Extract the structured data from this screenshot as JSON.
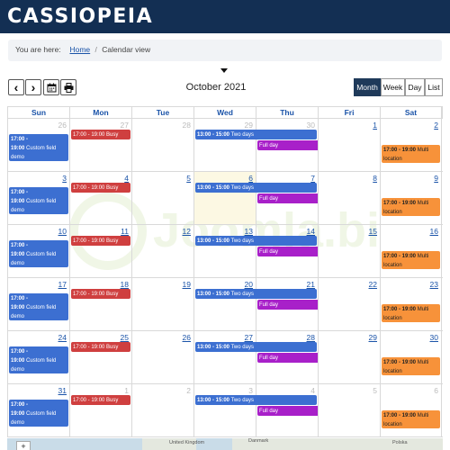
{
  "header": {
    "brand": "CASSIOPEIA"
  },
  "breadcrumb": {
    "prefix": "You are here:",
    "home": "Home",
    "separator": "/",
    "current": "Calendar view"
  },
  "toolbar": {
    "prev": "‹",
    "next": "›",
    "calendar_icon": "calendar-icon",
    "print_icon": "print-icon",
    "title": "October 2021",
    "views": [
      "Month",
      "Week",
      "Day",
      "List"
    ],
    "active_view": "Month"
  },
  "calendar": {
    "days_of_week": [
      "Sun",
      "Mon",
      "Tue",
      "Wed",
      "Thu",
      "Fri",
      "Sat"
    ],
    "weeks": [
      {
        "days": [
          "26",
          "27",
          "28",
          "29",
          "30",
          "1",
          "2"
        ],
        "other": [
          0,
          1,
          2,
          3,
          4
        ]
      },
      {
        "days": [
          "3",
          "4",
          "5",
          "6",
          "7",
          "8",
          "9"
        ],
        "other": []
      },
      {
        "days": [
          "10",
          "11",
          "12",
          "13",
          "14",
          "15",
          "16"
        ],
        "other": []
      },
      {
        "days": [
          "17",
          "18",
          "19",
          "20",
          "21",
          "22",
          "23"
        ],
        "other": []
      },
      {
        "days": [
          "24",
          "25",
          "26",
          "27",
          "28",
          "29",
          "30"
        ],
        "other": []
      },
      {
        "days": [
          "31",
          "1",
          "2",
          "3",
          "4",
          "5",
          "6"
        ],
        "other": [
          1,
          2,
          3,
          4,
          5,
          6
        ]
      }
    ],
    "today_col": 3,
    "today_week": 1,
    "events": {
      "custom": {
        "time1": "17:00 -",
        "time2": "19:00",
        "title": "Custom field demo"
      },
      "busy": {
        "time": "17:00 - 19:00",
        "title": "Busy"
      },
      "two_days": {
        "time": "13:00 - 15:00",
        "title": "Two days"
      },
      "full_day": {
        "title": "Full day"
      },
      "multi": {
        "time": "17:00 - 19:00",
        "title1": "Multi",
        "title2": "location"
      }
    }
  },
  "map": {
    "label_uk": "United Kingdom",
    "label_dk": "Danmark",
    "label_pl": "Polska",
    "zoom_in": "+"
  }
}
